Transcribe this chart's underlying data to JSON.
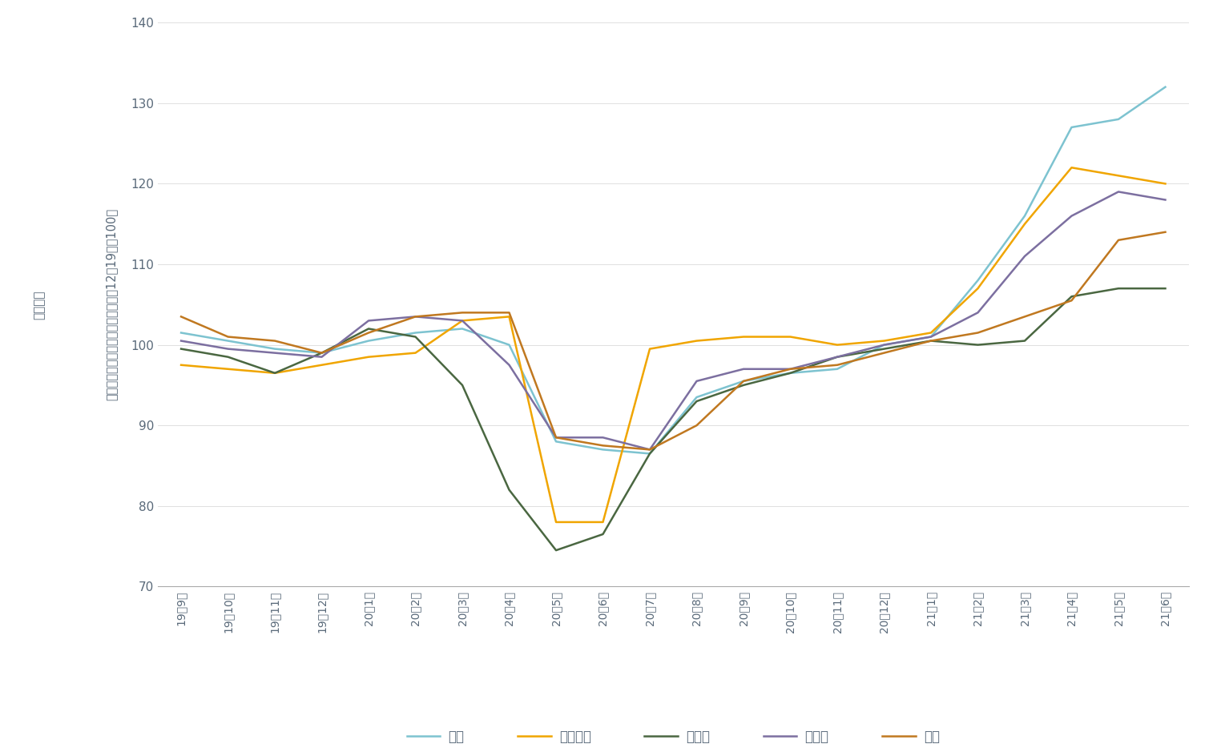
{
  "x_labels": [
    "19年9月",
    "19年10月",
    "19年11月",
    "19年12月",
    "20年1月",
    "20年2月",
    "20年3月",
    "20年4月",
    "20年5月",
    "20年6月",
    "20年7月",
    "20年8月",
    "20年9月",
    "20年10月",
    "20年11月",
    "20年12月",
    "21年1月",
    "21年2月",
    "21年3月",
    "21年4月",
    "21年5月",
    "21年6月"
  ],
  "series_names": [
    "印尼",
    "馬來西亞",
    "菲律賓",
    "新加坡",
    "泰國"
  ],
  "series_colors": [
    "#7dc3d0",
    "#f0a500",
    "#4a6741",
    "#7c6fa0",
    "#c07820"
  ],
  "series_values": {
    "印尼": [
      101.5,
      100.5,
      99.5,
      99.0,
      100.5,
      101.5,
      102.0,
      100.0,
      88.0,
      87.0,
      86.5,
      93.5,
      95.5,
      96.5,
      97.0,
      100.0,
      101.0,
      108.0,
      116.0,
      127.0,
      128.0,
      132.0
    ],
    "馬來西亞": [
      97.5,
      97.0,
      96.5,
      97.5,
      98.5,
      99.0,
      103.0,
      103.5,
      78.0,
      78.0,
      99.5,
      100.5,
      101.0,
      101.0,
      100.0,
      100.5,
      101.5,
      107.0,
      115.0,
      122.0,
      121.0,
      120.0
    ],
    "菲律賓": [
      99.5,
      98.5,
      96.5,
      99.0,
      102.0,
      101.0,
      95.0,
      82.0,
      74.5,
      76.5,
      86.5,
      93.0,
      95.0,
      96.5,
      98.5,
      99.5,
      100.5,
      100.0,
      100.5,
      106.0,
      107.0,
      107.0
    ],
    "新加坡": [
      100.5,
      99.5,
      99.0,
      98.5,
      103.0,
      103.5,
      103.0,
      97.5,
      88.5,
      88.5,
      87.0,
      95.5,
      97.0,
      97.0,
      98.5,
      100.0,
      101.0,
      104.0,
      111.0,
      116.0,
      119.0,
      118.0
    ],
    "泰國": [
      103.5,
      101.0,
      100.5,
      99.0,
      101.5,
      103.5,
      104.0,
      104.0,
      88.5,
      87.5,
      87.0,
      90.0,
      95.5,
      97.0,
      97.5,
      99.0,
      100.5,
      101.5,
      103.5,
      105.5,
      113.0,
      114.0
    ]
  },
  "ylim": [
    70,
    140
  ],
  "yticks": [
    70,
    80,
    90,
    100,
    110,
    120,
    130,
    140
  ],
  "ylabel_right": "（經季節調整，三個月移動平均值，12月19日＝100）",
  "ylabel_left": "東協出口",
  "background_color": "#ffffff",
  "line_width": 1.8,
  "text_color": "#5a6a7a"
}
